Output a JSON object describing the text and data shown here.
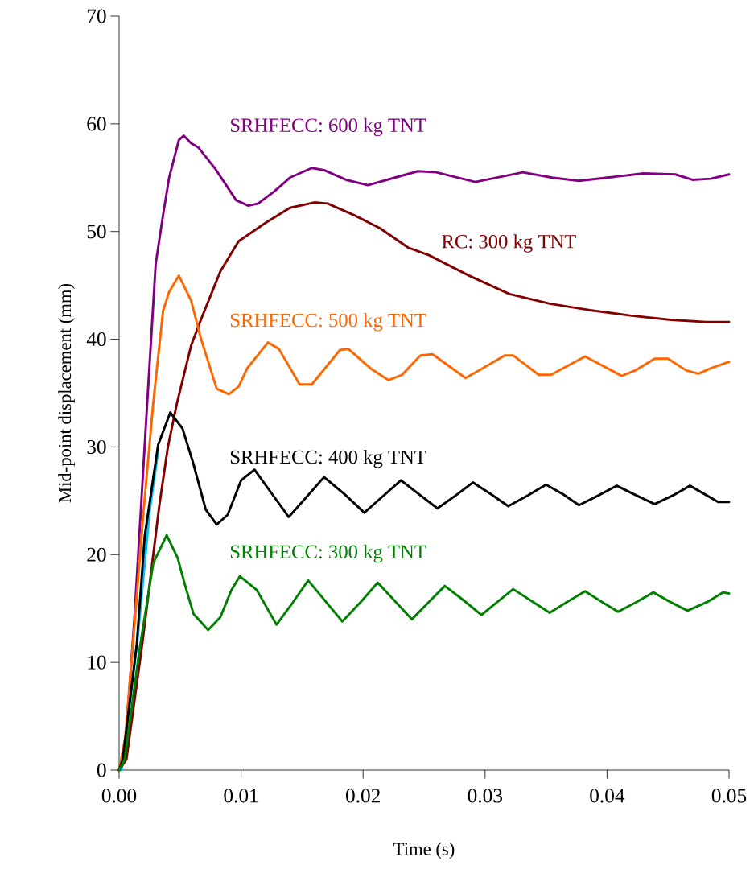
{
  "chart_data": {
    "type": "line",
    "xlabel": "Time (s)",
    "ylabel": "Mid-point displacement (mm)",
    "xlim": [
      0,
      0.05
    ],
    "ylim": [
      0,
      70
    ],
    "xticks": [
      {
        "value": 0,
        "label": "0.00"
      },
      {
        "value": 0.01,
        "label": "0.01"
      },
      {
        "value": 0.02,
        "label": "0.02"
      },
      {
        "value": 0.03,
        "label": "0.03"
      },
      {
        "value": 0.04,
        "label": "0.04"
      },
      {
        "value": 0.05,
        "label": "0.05"
      }
    ],
    "yticks": [
      0,
      10,
      20,
      30,
      40,
      50,
      60,
      70
    ],
    "grid": false,
    "marker": "none",
    "line_style": "solid",
    "series": [
      {
        "name": "SRHFECC: 600 kg TNT",
        "color": "#800080",
        "x": [
          0,
          0.0005,
          0.00125,
          0.0023,
          0.003,
          0.0036,
          0.0041,
          0.0049,
          0.0053,
          0.0059,
          0.0065,
          0.0079,
          0.0096,
          0.0106,
          0.0114,
          0.0127,
          0.014,
          0.0158,
          0.0168,
          0.0186,
          0.0204,
          0.0226,
          0.0245,
          0.026,
          0.0292,
          0.0331,
          0.0355,
          0.0377,
          0.04,
          0.043,
          0.0456,
          0.047,
          0.0485,
          0.05
        ],
        "values": [
          0,
          2,
          14,
          34,
          47,
          51.5,
          55,
          58.5,
          58.9,
          58.2,
          57.8,
          55.8,
          52.9,
          52.4,
          52.6,
          53.7,
          55,
          55.9,
          55.7,
          54.8,
          54.3,
          55,
          55.6,
          55.5,
          54.6,
          55.5,
          55,
          54.7,
          55,
          55.4,
          55.3,
          54.8,
          54.9,
          55.3
        ]
      },
      {
        "name": "RC:  300 kg TNT",
        "color": "#800000",
        "x": [
          0,
          0.0006,
          0.0019,
          0.0033,
          0.004,
          0.00475,
          0.0059,
          0.0067,
          0.0083,
          0.0098,
          0.012,
          0.014,
          0.016,
          0.0171,
          0.0193,
          0.0214,
          0.0237,
          0.0254,
          0.0287,
          0.032,
          0.0353,
          0.0386,
          0.0419,
          0.0452,
          0.0481,
          0.05
        ],
        "values": [
          0,
          1,
          11.7,
          24.6,
          30,
          34.1,
          39.4,
          41.8,
          46.3,
          49.1,
          50.8,
          52.2,
          52.7,
          52.6,
          51.5,
          50.3,
          48.5,
          47.8,
          45.9,
          44.2,
          43.3,
          42.7,
          42.2,
          41.8,
          41.6,
          41.6
        ]
      },
      {
        "name": "SRHFECC: 500 kg TNT",
        "color": "#ff6600",
        "x": [
          0,
          0.0005,
          0.0013,
          0.002,
          0.0028,
          0.0036,
          0.0041,
          0.0049,
          0.0059,
          0.0067,
          0.008,
          0.009,
          0.0098,
          0.0105,
          0.0122,
          0.0131,
          0.0148,
          0.0158,
          0.0181,
          0.0188,
          0.0206,
          0.0221,
          0.0232,
          0.0247,
          0.0257,
          0.0284,
          0.0298,
          0.0316,
          0.0323,
          0.0344,
          0.0354,
          0.0382,
          0.0412,
          0.0423,
          0.0439,
          0.045,
          0.0465,
          0.0475,
          0.0485,
          0.05
        ],
        "values": [
          0,
          3,
          14,
          24,
          34.1,
          42.6,
          44.4,
          45.9,
          43.6,
          40.1,
          35.4,
          34.9,
          35.6,
          37.3,
          39.7,
          39.1,
          35.8,
          35.8,
          39,
          39.1,
          37.3,
          36.2,
          36.7,
          38.5,
          38.6,
          36.4,
          37.3,
          38.5,
          38.5,
          36.7,
          36.7,
          38.4,
          36.6,
          37.1,
          38.2,
          38.2,
          37.1,
          36.8,
          37.3,
          37.9
        ]
      },
      {
        "name": "SRHFECC: 400 kg TNT",
        "color": "#000000",
        "x": [
          0,
          0.0003,
          0.00145,
          0.0021,
          0.0032,
          0.0042,
          0.0052,
          0.0061,
          0.0071,
          0.008,
          0.0089,
          0.01,
          0.0111,
          0.0125,
          0.0139,
          0.0154,
          0.0168,
          0.0185,
          0.0201,
          0.0216,
          0.0231,
          0.0246,
          0.0261,
          0.0276,
          0.029,
          0.0305,
          0.0319,
          0.0335,
          0.035,
          0.0364,
          0.0377,
          0.0393,
          0.0408,
          0.0424,
          0.0439,
          0.0454,
          0.0468,
          0.0491,
          0.05
        ],
        "values": [
          0,
          1,
          11.7,
          21.7,
          30.2,
          33.2,
          31.7,
          28.4,
          24.2,
          22.8,
          23.7,
          26.9,
          27.9,
          25.7,
          23.5,
          25.4,
          27.2,
          25.6,
          23.9,
          25.4,
          26.9,
          25.6,
          24.3,
          25.5,
          26.7,
          25.6,
          24.5,
          25.5,
          26.5,
          25.6,
          24.6,
          25.5,
          26.4,
          25.5,
          24.7,
          25.5,
          26.4,
          24.9,
          24.9
        ]
      },
      {
        "name": "SRHFECC: 300 kg TNT",
        "color": "#008000",
        "x": [
          0,
          0.00046,
          0.00165,
          0.0028,
          0.0039,
          0.0048,
          0.0054,
          0.0061,
          0.0073,
          0.0083,
          0.0092,
          0.0099,
          0.0113,
          0.0129,
          0.0142,
          0.0155,
          0.0169,
          0.0183,
          0.0198,
          0.0212,
          0.0226,
          0.024,
          0.0253,
          0.0267,
          0.0282,
          0.0297,
          0.031,
          0.0323,
          0.0338,
          0.0353,
          0.0367,
          0.0382,
          0.0396,
          0.0409,
          0.0424,
          0.0438,
          0.0452,
          0.0466,
          0.0482,
          0.0495,
          0.05
        ],
        "values": [
          0,
          1,
          11,
          19.2,
          21.8,
          19.7,
          17.2,
          14.5,
          13,
          14.2,
          16.7,
          18,
          16.7,
          13.5,
          15.5,
          17.6,
          15.7,
          13.8,
          15.6,
          17.4,
          15.7,
          14,
          15.5,
          17.1,
          15.8,
          14.4,
          15.6,
          16.8,
          15.7,
          14.6,
          15.6,
          16.6,
          15.6,
          14.7,
          15.6,
          16.5,
          15.6,
          14.8,
          15.6,
          16.5,
          16.4
        ]
      },
      {
        "color": "#00bfff",
        "x": [
          0.0002,
          0.0007,
          0.0015,
          0.0025,
          0.0032
        ],
        "values": [
          0,
          null,
          12,
          24,
          29.6
        ]
      }
    ]
  }
}
